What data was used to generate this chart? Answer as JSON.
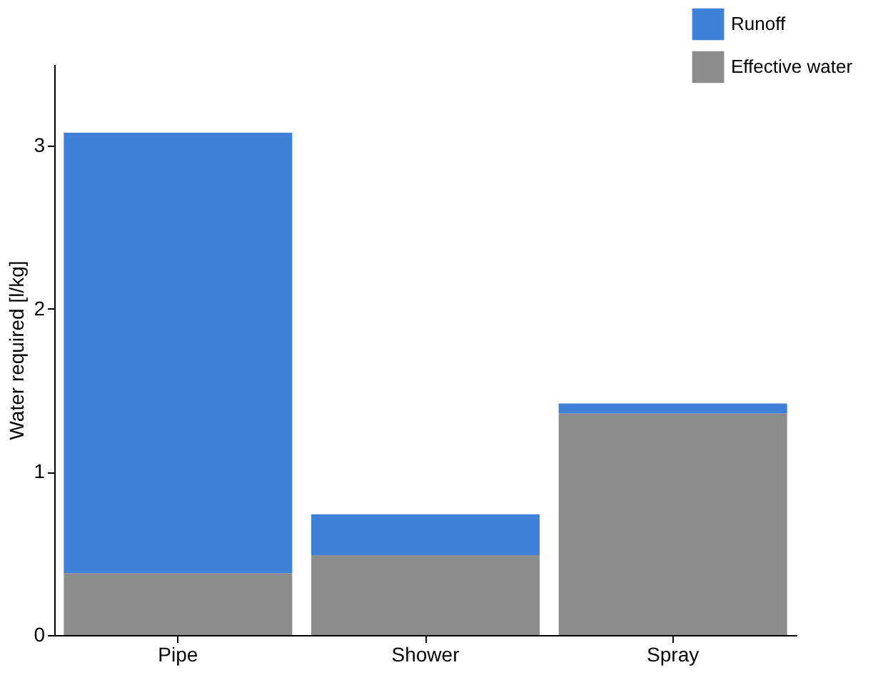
{
  "chart_data": {
    "type": "bar",
    "stacked": true,
    "ylabel": "Water required [l/kg]",
    "categories": [
      "Pipe",
      "Shower",
      "Spray"
    ],
    "series": [
      {
        "name": "Effective water",
        "color": "#8c8c8c",
        "values": [
          0.38,
          0.49,
          1.36
        ]
      },
      {
        "name": "Runoff",
        "color": "#3f80d8",
        "values": [
          2.7,
          0.25,
          0.06
        ]
      }
    ],
    "ylim": [
      0,
      3.5
    ],
    "yticks": [
      0,
      1,
      2,
      3
    ],
    "grid": false,
    "legend": "top right"
  }
}
